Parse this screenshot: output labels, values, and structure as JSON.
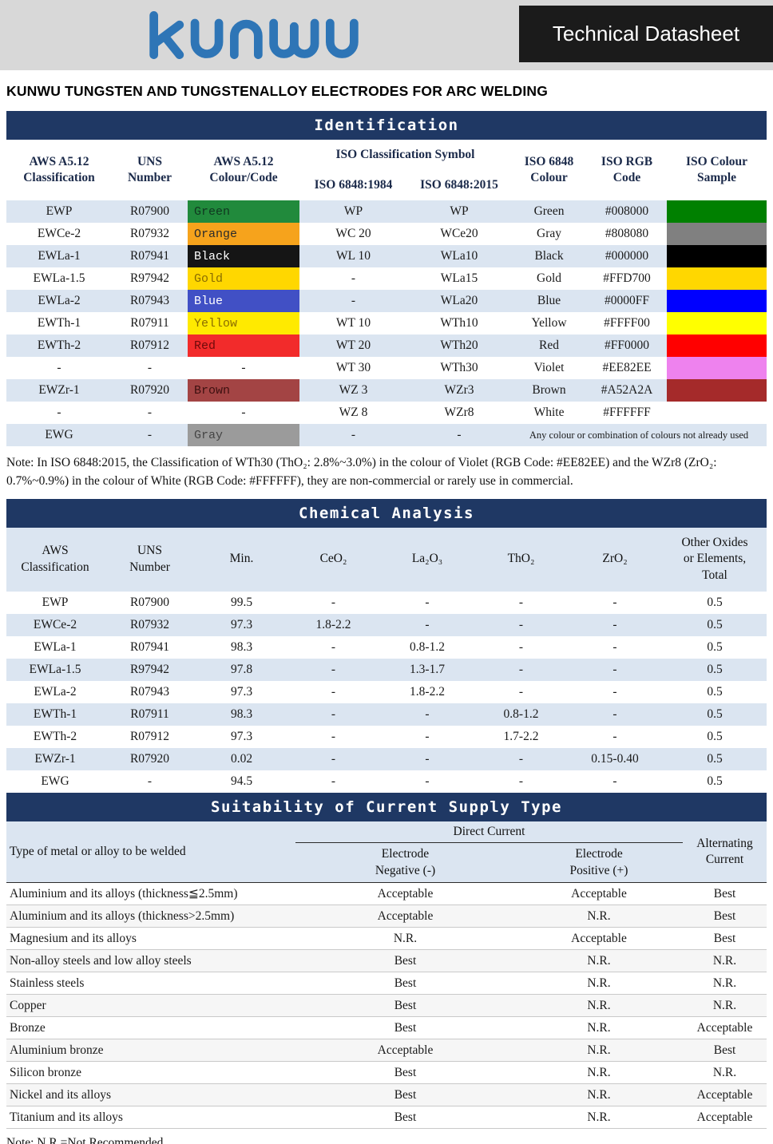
{
  "header": {
    "logo_text": "kunwu",
    "datasheet_label": "Technical Datasheet"
  },
  "page_title": "KUNWU TUNGSTEN AND TUNGSTENALLOY ELECTRODES FOR ARC WELDING",
  "colors": {
    "navy": "#1f3864",
    "row_tint": "#dbe5f1",
    "logo_blue": "#2e75b6",
    "topbar_gray": "#d8d8d8",
    "datasheet_box": "#1b1b1b"
  },
  "identification": {
    "title": "Identification",
    "headers": {
      "aws": "AWS A5.12\nClassification",
      "uns": "UNS\nNumber",
      "colour_code": "AWS A5.12\nColour/Code",
      "iso_symbol_group": "ISO Classification Symbol",
      "iso_1984": "ISO 6848:1984",
      "iso_2015": "ISO 6848:2015",
      "iso_colour": "ISO 6848\nColour",
      "iso_rgb": "ISO RGB\nCode",
      "iso_sample": "ISO Colour\nSample"
    },
    "rows": [
      {
        "aws": "EWP",
        "uns": "R07900",
        "code_label": "Green",
        "code_bg": "#218a3c",
        "code_fg": "#103720",
        "iso1984": "WP",
        "iso2015": "WP",
        "colour": "Green",
        "rgb": "#008000",
        "sample": "#008000"
      },
      {
        "aws": "EWCe-2",
        "uns": "R07932",
        "code_label": "Orange",
        "code_bg": "#f6a31c",
        "code_fg": "#2b2b2b",
        "iso1984": "WC 20",
        "iso2015": "WCe20",
        "colour": "Gray",
        "rgb": "#808080",
        "sample": "#808080"
      },
      {
        "aws": "EWLa-1",
        "uns": "R07941",
        "code_label": "Black",
        "code_bg": "#151515",
        "code_fg": "#ffffff",
        "iso1984": "WL 10",
        "iso2015": "WLa10",
        "colour": "Black",
        "rgb": "#000000",
        "sample": "#000000"
      },
      {
        "aws": "EWLa-1.5",
        "uns": "R97942",
        "code_label": "Gold",
        "code_bg": "#ffd700",
        "code_fg": "#8a6d00",
        "iso1984": "-",
        "iso2015": "WLa15",
        "colour": "Gold",
        "rgb": "#FFD700",
        "sample": "#FFD700"
      },
      {
        "aws": "EWLa-2",
        "uns": "R07943",
        "code_label": "Blue",
        "code_bg": "#4150c5",
        "code_fg": "#ffffff",
        "iso1984": "-",
        "iso2015": "WLa20",
        "colour": "Blue",
        "rgb": "#0000FF",
        "sample": "#0000FF"
      },
      {
        "aws": "EWTh-1",
        "uns": "R07911",
        "code_label": "Yellow",
        "code_bg": "#ffea00",
        "code_fg": "#8a6d00",
        "iso1984": "WT 10",
        "iso2015": "WTh10",
        "colour": "Yellow",
        "rgb": "#FFFF00",
        "sample": "#FFFF00"
      },
      {
        "aws": "EWTh-2",
        "uns": "R07912",
        "code_label": "Red",
        "code_bg": "#f22b2b",
        "code_fg": "#6e0a0a",
        "iso1984": "WT 20",
        "iso2015": "WTh20",
        "colour": "Red",
        "rgb": "#FF0000",
        "sample": "#FF0000"
      },
      {
        "aws": "-",
        "uns": "-",
        "code_label": "-",
        "iso1984": "WT 30",
        "iso2015": "WTh30",
        "colour": "Violet",
        "rgb": "#EE82EE",
        "sample": "#EE82EE"
      },
      {
        "aws": "EWZr-1",
        "uns": "R07920",
        "code_label": "Brown",
        "code_bg": "#a34444",
        "code_fg": "#3d1010",
        "iso1984": "WZ 3",
        "iso2015": "WZr3",
        "colour": "Brown",
        "rgb": "#A52A2A",
        "sample": "#A52A2A"
      },
      {
        "aws": "-",
        "uns": "-",
        "code_label": "-",
        "iso1984": "WZ 8",
        "iso2015": "WZr8",
        "colour": "White",
        "rgb": "#FFFFFF",
        "sample": "#FFFFFF"
      },
      {
        "aws": "EWG",
        "uns": "-",
        "code_label": "Gray",
        "code_bg": "#9b9b9b",
        "code_fg": "#454545",
        "iso1984": "-",
        "iso2015": "-",
        "note_span": "Any colour or combination of colours not already used"
      }
    ],
    "note": "Note: In ISO 6848:2015, the Classification of WTh30 (ThO₂: 2.8%~3.0%) in the colour of Violet (RGB Code: #EE82EE) and the WZr8 (ZrO₂: 0.7%~0.9%) in the colour of White (RGB Code: #FFFFFF), they are non-commercial or rarely use in commercial."
  },
  "chemical": {
    "title": "Chemical Analysis",
    "headers": [
      "AWS\nClassification",
      "UNS\nNumber",
      "Min.",
      "CeO₂",
      "La₂O₃",
      "ThO₂",
      "ZrO₂",
      "Other Oxides\nor Elements,\nTotal"
    ],
    "rows": [
      [
        "EWP",
        "R07900",
        "99.5",
        "-",
        "-",
        "-",
        "-",
        "0.5"
      ],
      [
        "EWCe-2",
        "R07932",
        "97.3",
        "1.8-2.2",
        "-",
        "-",
        "-",
        "0.5"
      ],
      [
        "EWLa-1",
        "R07941",
        "98.3",
        "-",
        "0.8-1.2",
        "-",
        "-",
        "0.5"
      ],
      [
        "EWLa-1.5",
        "R97942",
        "97.8",
        "-",
        "1.3-1.7",
        "-",
        "-",
        "0.5"
      ],
      [
        "EWLa-2",
        "R07943",
        "97.3",
        "-",
        "1.8-2.2",
        "-",
        "-",
        "0.5"
      ],
      [
        "EWTh-1",
        "R07911",
        "98.3",
        "-",
        "-",
        "0.8-1.2",
        "-",
        "0.5"
      ],
      [
        "EWTh-2",
        "R07912",
        "97.3",
        "-",
        "-",
        "1.7-2.2",
        "-",
        "0.5"
      ],
      [
        "EWZr-1",
        "R07920",
        "0.02",
        "-",
        "-",
        "-",
        "0.15-0.40",
        "0.5"
      ],
      [
        "EWG",
        "-",
        "94.5",
        "-",
        "-",
        "-",
        "-",
        "0.5"
      ]
    ]
  },
  "suitability": {
    "title": "Suitability of Current Supply Type",
    "headers": {
      "type": "Type of metal or alloy to be welded",
      "direct": "Direct Current",
      "neg": "Electrode\nNegative (-)",
      "pos": "Electrode\nPositive (+)",
      "alt": "Alternating\nCurrent"
    },
    "rows": [
      [
        "Aluminium and its alloys (thickness≦2.5mm)",
        "Acceptable",
        "Acceptable",
        "Best"
      ],
      [
        "Aluminium and its alloys (thickness>2.5mm)",
        "Acceptable",
        "N.R.",
        "Best"
      ],
      [
        "Magnesium and its alloys",
        "N.R.",
        "Acceptable",
        "Best"
      ],
      [
        "Non-alloy steels and low alloy steels",
        "Best",
        "N.R.",
        "N.R."
      ],
      [
        "Stainless steels",
        "Best",
        "N.R.",
        "N.R."
      ],
      [
        "Copper",
        "Best",
        "N.R.",
        "N.R."
      ],
      [
        "Bronze",
        "Best",
        "N.R.",
        "Acceptable"
      ],
      [
        "Aluminium bronze",
        "Acceptable",
        "N.R.",
        "Best"
      ],
      [
        "Silicon bronze",
        "Best",
        "N.R.",
        "N.R."
      ],
      [
        "Nickel and its alloys",
        "Best",
        "N.R.",
        "Acceptable"
      ],
      [
        "Titanium and its alloys",
        "Best",
        "N.R.",
        "Acceptable"
      ]
    ],
    "note": "Note: N.R.=Not Recommended"
  }
}
